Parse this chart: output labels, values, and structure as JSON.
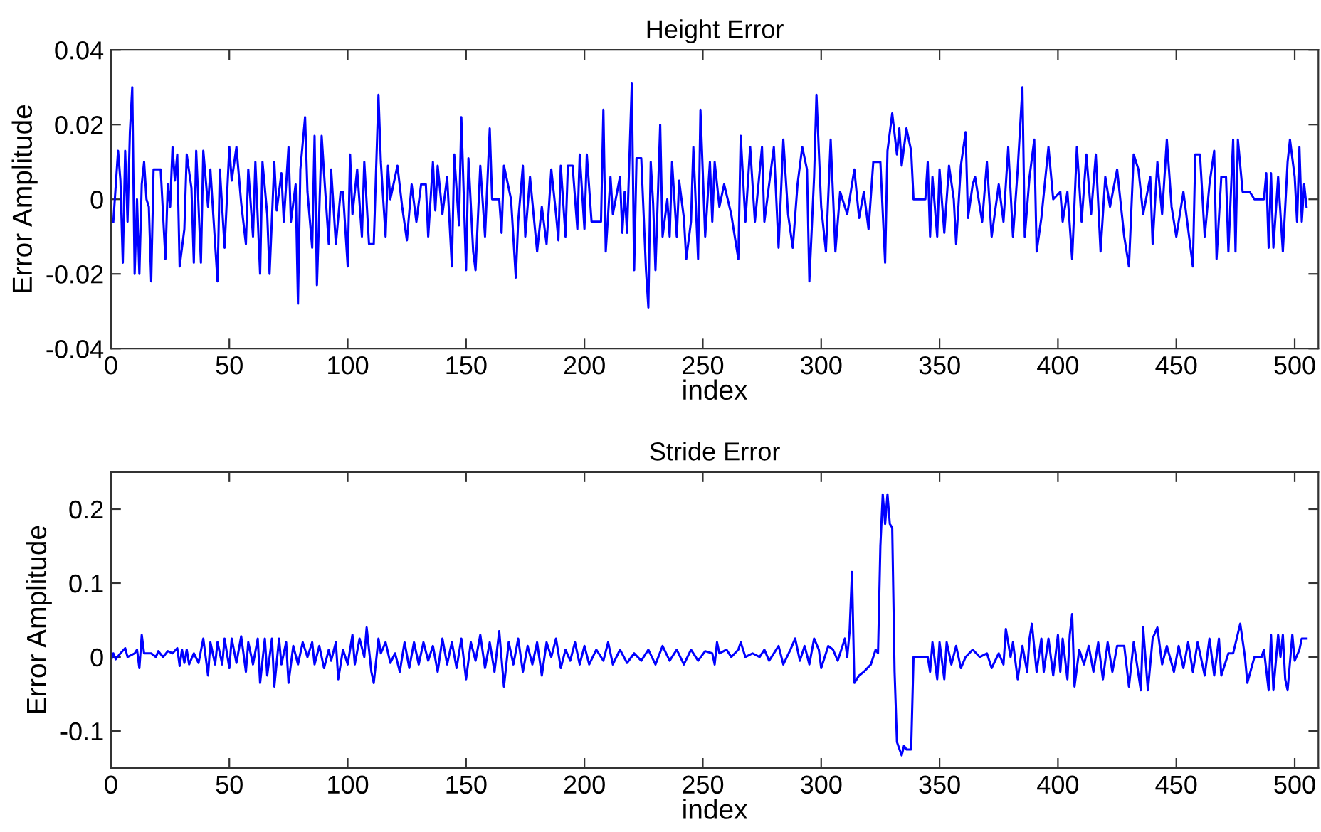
{
  "chart_data": [
    {
      "type": "line",
      "title": "Height Error",
      "xlabel": "index",
      "ylabel": "Error Amplitude",
      "grid": false,
      "marker": "none",
      "line_style": "solid",
      "xlim": [
        0,
        510
      ],
      "ylim": [
        -0.04,
        0.04
      ],
      "xticks": [
        0,
        50,
        100,
        150,
        200,
        250,
        300,
        350,
        400,
        450,
        500
      ],
      "yticks": [
        -0.04,
        -0.02,
        0,
        0.02,
        0.04
      ],
      "x": [
        1,
        3,
        4,
        5,
        6,
        7,
        8,
        9,
        10,
        11,
        12,
        13,
        14,
        15,
        16,
        17,
        18,
        21,
        23,
        24,
        25,
        26,
        27,
        28,
        29,
        31,
        32,
        34,
        35,
        36,
        38,
        39,
        41,
        42,
        45,
        46,
        48,
        50,
        51,
        53,
        55,
        57,
        58,
        60,
        61,
        63,
        64,
        66,
        67,
        69,
        70,
        72,
        73,
        75,
        76,
        78,
        79,
        80,
        82,
        83,
        85,
        86,
        87,
        89,
        90,
        92,
        93,
        95,
        97,
        98,
        100,
        101,
        102,
        104,
        106,
        107,
        109,
        111,
        113,
        114,
        116,
        117,
        118,
        121,
        123,
        125,
        127,
        129,
        131,
        133,
        134,
        136,
        137,
        138,
        140,
        142,
        144,
        145,
        147,
        148,
        150,
        151,
        153,
        154,
        156,
        158,
        160,
        161,
        164,
        165,
        166,
        169,
        171,
        172,
        174,
        175,
        177,
        180,
        182,
        184,
        186,
        188,
        189,
        190,
        192,
        193,
        195,
        197,
        198,
        200,
        201,
        203,
        207,
        208,
        209,
        211,
        212,
        215,
        216,
        217,
        218,
        220,
        221,
        222,
        224,
        226,
        227,
        228,
        229,
        230,
        232,
        233,
        235,
        236,
        237,
        239,
        240,
        242,
        243,
        245,
        246,
        248,
        249,
        251,
        253,
        254,
        255,
        257,
        259,
        262,
        265,
        266,
        268,
        270,
        272,
        275,
        276,
        280,
        282,
        284,
        286,
        288,
        290,
        292,
        294,
        295,
        297,
        298,
        300,
        302,
        304,
        306,
        308,
        311,
        314,
        316,
        318,
        320,
        322,
        325,
        327,
        328,
        330,
        332,
        333,
        334,
        336,
        338,
        339,
        344,
        345,
        346,
        347,
        349,
        350,
        352,
        354,
        356,
        357,
        359,
        361,
        362,
        364,
        365,
        368,
        370,
        372,
        375,
        377,
        379,
        381,
        383,
        385,
        386,
        388,
        390,
        391,
        393,
        396,
        398,
        401,
        402,
        404,
        406,
        408,
        410,
        412,
        414,
        416,
        418,
        420,
        422,
        425,
        428,
        430,
        432,
        434,
        436,
        439,
        440,
        442,
        444,
        446,
        448,
        450,
        453,
        455,
        457,
        458,
        460,
        462,
        464,
        466,
        467,
        469,
        471,
        472,
        474,
        475,
        476,
        478,
        481,
        483,
        487,
        488,
        489,
        490,
        491,
        493,
        494,
        495,
        497,
        498,
        500,
        501,
        502,
        503,
        504,
        505
      ],
      "series": [
        {
          "color": "#0000ff",
          "values": [
            -0.006,
            0.013,
            0.005,
            -0.017,
            0.013,
            -0.006,
            0.018,
            0.03,
            -0.02,
            0,
            -0.02,
            0.004,
            0.01,
            0,
            -0.002,
            -0.022,
            0.008,
            0.008,
            -0.016,
            0.004,
            -0.002,
            0.014,
            0.005,
            0.012,
            -0.018,
            -0.008,
            0.012,
            0.003,
            -0.017,
            0.013,
            -0.017,
            0.013,
            -0.002,
            0.008,
            -0.022,
            0.008,
            -0.013,
            0.014,
            0.005,
            0.014,
            -0.001,
            -0.012,
            0.008,
            -0.01,
            0.01,
            -0.02,
            0.01,
            -0.004,
            -0.02,
            0.01,
            -0.003,
            0.007,
            -0.006,
            0.014,
            -0.006,
            0.004,
            -0.028,
            0.008,
            0.022,
            0.002,
            -0.013,
            0.017,
            -0.023,
            0.017,
            0.007,
            -0.012,
            0.008,
            -0.012,
            0.002,
            0.002,
            -0.018,
            0.012,
            -0.004,
            0.008,
            -0.01,
            0.01,
            -0.012,
            -0.012,
            0.028,
            0.01,
            -0.01,
            0.009,
            0,
            0.009,
            -0.002,
            -0.011,
            0.004,
            -0.006,
            0.004,
            0.004,
            -0.01,
            0.01,
            -0.003,
            0.009,
            -0.004,
            0.006,
            -0.018,
            0.012,
            -0.007,
            0.022,
            -0.019,
            0.011,
            -0.014,
            -0.019,
            0.009,
            -0.01,
            0.019,
            0,
            0,
            -0.009,
            0.009,
            0,
            -0.021,
            -0.006,
            0.009,
            -0.01,
            0.006,
            -0.014,
            -0.002,
            -0.012,
            0.008,
            -0.004,
            -0.011,
            0.009,
            -0.01,
            0.009,
            0.009,
            -0.008,
            0.012,
            -0.008,
            0.012,
            -0.006,
            -0.006,
            0.024,
            -0.014,
            0.006,
            -0.004,
            0.006,
            -0.009,
            0.002,
            -0.009,
            0.031,
            -0.019,
            0.011,
            0.011,
            -0.019,
            -0.029,
            0.01,
            -0.001,
            -0.019,
            0.02,
            -0.01,
            0,
            -0.01,
            0.01,
            -0.01,
            0.005,
            -0.005,
            -0.016,
            -0.006,
            0.014,
            -0.016,
            0.024,
            -0.01,
            0.01,
            -0.006,
            0.01,
            -0.002,
            0.004,
            -0.004,
            -0.016,
            0.017,
            -0.006,
            0.014,
            -0.006,
            0.014,
            -0.006,
            0.014,
            -0.013,
            0.016,
            -0.004,
            -0.013,
            0.004,
            0.014,
            0.008,
            -0.022,
            0.006,
            0.028,
            -0.002,
            -0.014,
            0.016,
            -0.014,
            0.002,
            -0.004,
            0.008,
            -0.005,
            0.002,
            -0.008,
            0.01,
            0.01,
            -0.017,
            0.013,
            0.023,
            0.012,
            0.019,
            0.009,
            0.019,
            0.013,
            0,
            0,
            0.01,
            -0.01,
            0.006,
            -0.01,
            0.008,
            -0.009,
            0.009,
            0,
            -0.012,
            0.009,
            0.018,
            -0.005,
            0.004,
            0.006,
            -0.006,
            0.01,
            -0.01,
            0.004,
            -0.006,
            0.014,
            -0.01,
            0.008,
            0.03,
            -0.01,
            0.006,
            0.016,
            -0.014,
            -0.005,
            0.014,
            0,
            0.002,
            -0.006,
            0.002,
            -0.016,
            0.014,
            -0.006,
            0.012,
            -0.004,
            0.012,
            -0.014,
            0.006,
            -0.002,
            0.008,
            -0.01,
            -0.018,
            0.012,
            0.008,
            -0.004,
            0.006,
            -0.012,
            0.01,
            -0.004,
            0.016,
            -0.002,
            -0.01,
            0.002,
            -0.008,
            -0.018,
            0.012,
            0.012,
            -0.01,
            0.004,
            0.013,
            -0.016,
            0.006,
            0.006,
            -0.014,
            0.016,
            -0.014,
            0.016,
            0.002,
            0.002,
            0,
            0,
            0.007,
            -0.013,
            0.007,
            -0.013,
            0.006,
            -0.004,
            -0.014,
            0.01,
            0.016,
            0.006,
            -0.006,
            0.014,
            -0.006,
            0.004,
            -0.002
          ]
        }
      ]
    },
    {
      "type": "line",
      "title": "Stride Error",
      "xlabel": "index",
      "ylabel": "Error Amplitude",
      "grid": false,
      "marker": "none",
      "line_style": "solid",
      "xlim": [
        0,
        510
      ],
      "ylim": [
        -0.15,
        0.25
      ],
      "xticks": [
        0,
        50,
        100,
        150,
        200,
        250,
        300,
        350,
        400,
        450,
        500
      ],
      "yticks": [
        -0.1,
        0,
        0.1,
        0.2
      ],
      "x": [
        0,
        1,
        2,
        4,
        6,
        7,
        10,
        11,
        12,
        13,
        14,
        17,
        19,
        20,
        22,
        24,
        26,
        28,
        29,
        30,
        31,
        32,
        33,
        35,
        37,
        39,
        41,
        42,
        44,
        45,
        47,
        48,
        50,
        51,
        53,
        55,
        57,
        58,
        60,
        62,
        63,
        65,
        66,
        68,
        69,
        71,
        72,
        74,
        75,
        77,
        79,
        81,
        83,
        85,
        86,
        88,
        90,
        92,
        93,
        95,
        96,
        98,
        100,
        102,
        103,
        105,
        107,
        108,
        110,
        111,
        113,
        114,
        116,
        118,
        120,
        122,
        124,
        126,
        128,
        130,
        132,
        134,
        136,
        138,
        140,
        142,
        144,
        146,
        148,
        150,
        152,
        154,
        156,
        158,
        160,
        162,
        164,
        166,
        168,
        170,
        172,
        174,
        176,
        178,
        180,
        182,
        184,
        186,
        188,
        190,
        192,
        194,
        196,
        198,
        200,
        202,
        205,
        208,
        210,
        212,
        215,
        218,
        221,
        224,
        227,
        230,
        233,
        236,
        239,
        242,
        245,
        248,
        251,
        254,
        255,
        256,
        257,
        260,
        262,
        265,
        266,
        268,
        271,
        274,
        276,
        278,
        282,
        284,
        287,
        289,
        291,
        293,
        295,
        297,
        299,
        300,
        303,
        305,
        307,
        310,
        311,
        312,
        313,
        314,
        316,
        318,
        321,
        323,
        324,
        325,
        326,
        327,
        328,
        329,
        330,
        331,
        332,
        334,
        335,
        336,
        338,
        339,
        345,
        346,
        347,
        349,
        350,
        352,
        353,
        355,
        357,
        359,
        361,
        364,
        367,
        370,
        372,
        375,
        377,
        378,
        380,
        381,
        383,
        385,
        387,
        388,
        389,
        391,
        393,
        394,
        396,
        398,
        400,
        401,
        402,
        404,
        405,
        406,
        407,
        409,
        411,
        413,
        415,
        417,
        419,
        421,
        423,
        425,
        428,
        430,
        432,
        435,
        436,
        438,
        440,
        442,
        444,
        446,
        449,
        451,
        453,
        455,
        457,
        459,
        462,
        464,
        466,
        468,
        469,
        472,
        474,
        477,
        479,
        480,
        483,
        486,
        487,
        489,
        490,
        491,
        493,
        494,
        495,
        496,
        497,
        499,
        500,
        502,
        503,
        505
      ],
      "series": [
        {
          "color": "#0000ff",
          "values": [
            -0.005,
            0.005,
            -0.003,
            0.005,
            0.012,
            0,
            0.005,
            0.01,
            -0.015,
            0.03,
            0.005,
            0.005,
            0,
            0.008,
            0,
            0.008,
            0.005,
            0.012,
            -0.012,
            0.01,
            -0.008,
            0.01,
            -0.01,
            0.005,
            -0.008,
            0.025,
            -0.025,
            0.02,
            -0.01,
            0.02,
            -0.01,
            0.025,
            -0.015,
            0.025,
            -0.008,
            0.028,
            -0.02,
            0.02,
            -0.01,
            0.025,
            -0.035,
            0.025,
            -0.025,
            0.025,
            -0.04,
            0.025,
            -0.01,
            0.02,
            -0.035,
            0.015,
            -0.01,
            0.02,
            0,
            0.02,
            -0.01,
            0.015,
            -0.015,
            0.01,
            -0.005,
            0.02,
            -0.03,
            0.01,
            -0.01,
            0.03,
            -0.01,
            0.025,
            0,
            0.04,
            -0.02,
            -0.035,
            0.025,
            0.005,
            0.02,
            -0.008,
            0.005,
            -0.02,
            0.02,
            -0.015,
            0.02,
            -0.01,
            0.02,
            -0.005,
            0.015,
            -0.02,
            0.025,
            -0.01,
            0.02,
            -0.015,
            0.025,
            -0.03,
            0.02,
            -0.005,
            0.03,
            -0.015,
            0.02,
            -0.02,
            0.035,
            -0.04,
            0.02,
            -0.01,
            0.025,
            -0.02,
            0.015,
            -0.01,
            0.02,
            -0.025,
            0.02,
            0,
            0.025,
            -0.015,
            0.01,
            -0.005,
            0.02,
            -0.01,
            0.015,
            -0.01,
            0.01,
            -0.005,
            0.02,
            -0.01,
            0.01,
            -0.008,
            0.005,
            -0.005,
            0.01,
            -0.01,
            0.015,
            -0.005,
            0.01,
            -0.01,
            0.01,
            -0.005,
            0.008,
            0.005,
            -0.01,
            0.02,
            0.005,
            0.01,
            0,
            0.01,
            0.02,
            0,
            0.005,
            0,
            0.01,
            -0.005,
            0.015,
            -0.01,
            0.01,
            0.025,
            -0.005,
            0.015,
            -0.01,
            0.025,
            0.01,
            -0.015,
            0.015,
            0.01,
            -0.005,
            0.025,
            0,
            0.035,
            0.115,
            -0.035,
            -0.025,
            -0.02,
            -0.01,
            0.01,
            0.005,
            0.15,
            0.22,
            0.18,
            0.22,
            0.18,
            0.175,
            -0.02,
            -0.115,
            -0.133,
            -0.12,
            -0.125,
            -0.125,
            0,
            0,
            -0.02,
            0.02,
            -0.03,
            0.02,
            -0.03,
            0.02,
            -0.01,
            0.015,
            -0.015,
            0,
            0.01,
            0,
            0.005,
            -0.015,
            0.005,
            -0.01,
            0.038,
            0,
            0.02,
            -0.03,
            0.015,
            -0.02,
            0.025,
            0.045,
            -0.02,
            0.025,
            -0.02,
            0.025,
            -0.025,
            0.03,
            -0.02,
            0.025,
            -0.03,
            0.03,
            0.058,
            -0.04,
            0.01,
            -0.01,
            0.015,
            -0.02,
            0.02,
            -0.03,
            0.02,
            -0.02,
            0.015,
            0.015,
            -0.04,
            0.02,
            -0.045,
            0.04,
            -0.045,
            0.025,
            0.04,
            -0.01,
            0.015,
            -0.02,
            0.015,
            -0.015,
            0.02,
            -0.02,
            0.02,
            -0.025,
            0.025,
            -0.025,
            0.025,
            -0.025,
            0.005,
            0.005,
            0.045,
            0,
            -0.035,
            0,
            0,
            0.01,
            -0.045,
            0.03,
            -0.045,
            0.03,
            0,
            0.03,
            -0.03,
            -0.045,
            0.03,
            -0.005,
            0.01,
            0.025,
            0.025
          ]
        }
      ]
    }
  ]
}
